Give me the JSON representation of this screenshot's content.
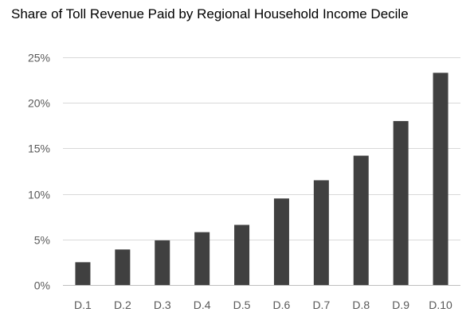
{
  "chart_data": {
    "type": "bar",
    "title": "Share of Toll Revenue Paid by Regional Household Income Decile",
    "xlabel": "",
    "ylabel": "",
    "categories": [
      "D.1",
      "D.2",
      "D.3",
      "D.4",
      "D.5",
      "D.6",
      "D.7",
      "D.8",
      "D.9",
      "D.10"
    ],
    "values": [
      2.5,
      3.9,
      4.9,
      5.8,
      6.6,
      9.5,
      11.5,
      14.2,
      18.0,
      23.3
    ],
    "ylim": [
      0,
      25
    ],
    "yticks": [
      0,
      5,
      10,
      15,
      20,
      25
    ],
    "ytick_labels": [
      "0%",
      "5%",
      "10%",
      "15%",
      "20%",
      "25%"
    ],
    "grid": true,
    "legend": "none",
    "colors": {
      "bar": "#404040",
      "grid": "#d9d9d9",
      "axis": "#bfbfbf",
      "tick_text": "#595959"
    }
  }
}
